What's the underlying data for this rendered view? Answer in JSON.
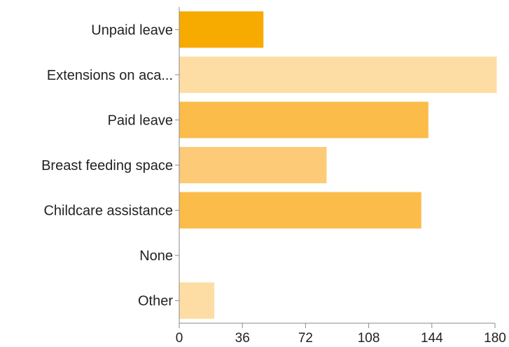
{
  "chart_data": {
    "type": "bar",
    "orientation": "horizontal",
    "categories": [
      "Unpaid leave",
      "Extensions on aca...",
      "Paid leave",
      "Breast feeding space",
      "Childcare assistance",
      "None",
      "Other"
    ],
    "values": [
      48,
      181,
      142,
      84,
      138,
      0,
      20
    ],
    "bar_colors": [
      "#f7aa00",
      "#fedda4",
      "#fbbc4a",
      "#fdca78",
      "#fbbc4a",
      "#fedda4",
      "#fedda4"
    ],
    "xlim": [
      0,
      180
    ],
    "x_ticks": [
      "0",
      "36",
      "72",
      "108",
      "144",
      "180"
    ],
    "xlabel": "",
    "ylabel": "",
    "title": "",
    "grid": false,
    "legend": "none"
  }
}
